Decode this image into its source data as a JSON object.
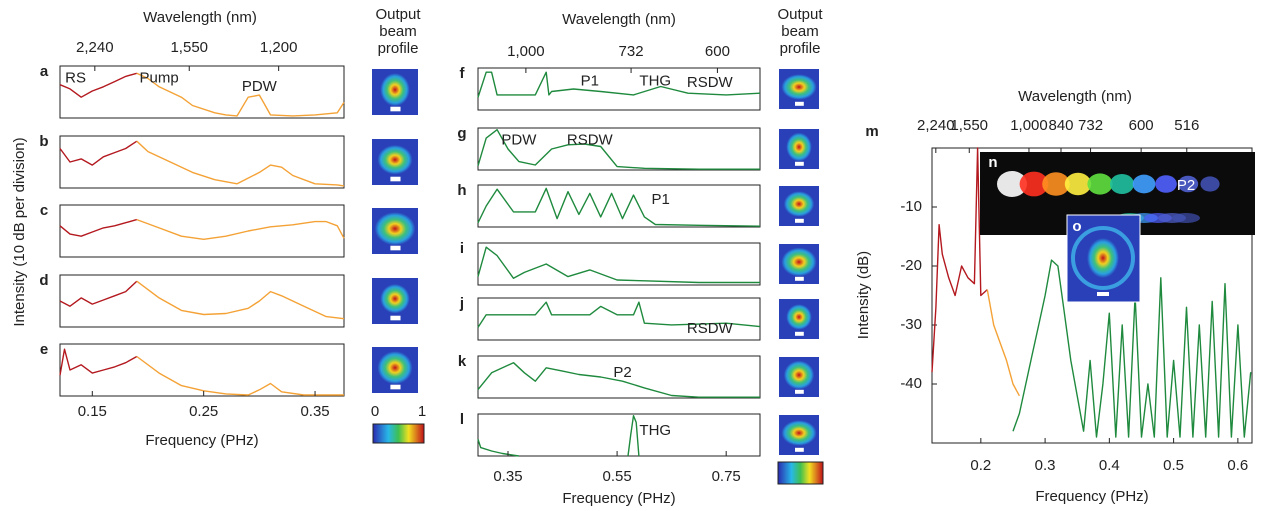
{
  "chart_data": [
    {
      "type": "line",
      "xlabel": "Frequency (PHz)",
      "ylabel": "Intensity (10 dB per division)",
      "xlim": [
        0.121,
        0.376
      ],
      "xticks": [
        0.15,
        0.25,
        0.35
      ],
      "ylim": [
        0,
        5
      ],
      "x2label": "Wavelength (nm)",
      "x2scale": "reciprocal",
      "x2lim": [
        2680,
        1030
      ],
      "x2ticks": [
        {
          "value": 2240,
          "label": "2,240"
        },
        {
          "value": 1550,
          "label": "1,550"
        },
        {
          "value": 1200,
          "label": "1,200"
        }
      ],
      "profile_title": "Output beam profile",
      "colorbar_ticks": [
        0,
        1
      ],
      "panels": [
        {
          "label": "a",
          "series": [
            {
              "color": "#b3191f",
              "x": [
                0.121,
                0.13,
                0.14,
                0.15,
                0.16,
                0.17,
                0.18,
                0.19
              ],
              "values": [
                3.2,
                2.8,
                2.0,
                2.6,
                3.0,
                3.5,
                4.0,
                4.3
              ]
            },
            {
              "color": "#f4a236",
              "x": [
                0.19,
                0.2,
                0.21,
                0.22,
                0.23,
                0.24,
                0.26,
                0.27,
                0.28,
                0.29,
                0.3,
                0.31,
                0.33,
                0.35,
                0.37,
                0.376
              ],
              "values": [
                4.3,
                3.8,
                3.0,
                2.5,
                2.0,
                1.2,
                0.5,
                0.3,
                0.2,
                2.0,
                2.2,
                0.3,
                0.2,
                0.3,
                0.5,
                1.5
              ]
            }
          ],
          "annotations": [
            {
              "text": "RS",
              "x": 0.135,
              "y": 3.8
            },
            {
              "text": "Pump",
              "x": 0.21,
              "y": 3.8
            },
            {
              "text": "PDW",
              "x": 0.3,
              "y": 3.0
            }
          ]
        },
        {
          "label": "b",
          "series": [
            {
              "color": "#b3191f",
              "x": [
                0.121,
                0.13,
                0.14,
                0.15,
                0.16,
                0.17,
                0.18,
                0.19
              ],
              "values": [
                3.8,
                2.5,
                2.8,
                2.2,
                3.0,
                3.4,
                3.8,
                4.5
              ]
            },
            {
              "color": "#f4a236",
              "x": [
                0.19,
                0.2,
                0.22,
                0.24,
                0.26,
                0.28,
                0.3,
                0.31,
                0.32,
                0.33,
                0.35,
                0.37,
                0.376
              ],
              "values": [
                4.5,
                3.5,
                2.5,
                1.5,
                0.8,
                0.4,
                1.5,
                2.2,
                2.0,
                1.2,
                0.4,
                0.3,
                0.2
              ]
            }
          ],
          "annotations": []
        },
        {
          "label": "c",
          "series": [
            {
              "color": "#b3191f",
              "x": [
                0.121,
                0.13,
                0.14,
                0.15,
                0.16,
                0.17,
                0.18,
                0.19
              ],
              "values": [
                3.0,
                2.2,
                2.0,
                2.4,
                2.8,
                3.0,
                3.3,
                3.6
              ]
            },
            {
              "color": "#f4a236",
              "x": [
                0.19,
                0.21,
                0.23,
                0.25,
                0.27,
                0.29,
                0.31,
                0.33,
                0.35,
                0.36,
                0.37,
                0.376
              ],
              "values": [
                3.6,
                2.8,
                2.0,
                1.7,
                2.0,
                2.5,
                2.9,
                3.1,
                3.4,
                3.4,
                3.0,
                1.8
              ]
            }
          ],
          "annotations": []
        },
        {
          "label": "d",
          "series": [
            {
              "color": "#b3191f",
              "x": [
                0.121,
                0.13,
                0.14,
                0.15,
                0.16,
                0.17,
                0.18,
                0.19
              ],
              "values": [
                2.5,
                2.0,
                2.8,
                2.2,
                2.6,
                3.0,
                3.4,
                4.4
              ]
            },
            {
              "color": "#f4a236",
              "x": [
                0.19,
                0.21,
                0.23,
                0.25,
                0.27,
                0.29,
                0.3,
                0.31,
                0.32,
                0.34,
                0.36,
                0.376
              ],
              "values": [
                4.4,
                2.8,
                1.6,
                1.2,
                1.3,
                1.8,
                2.5,
                3.4,
                3.0,
                2.0,
                1.0,
                0.8
              ]
            }
          ],
          "annotations": []
        },
        {
          "label": "e",
          "series": [
            {
              "color": "#b3191f",
              "x": [
                0.121,
                0.125,
                0.13,
                0.14,
                0.15,
                0.16,
                0.17,
                0.18,
                0.19
              ],
              "values": [
                2.0,
                4.5,
                2.5,
                3.0,
                2.2,
                2.5,
                2.8,
                3.2,
                3.8
              ]
            },
            {
              "color": "#f4a236",
              "x": [
                0.19,
                0.21,
                0.23,
                0.25,
                0.27,
                0.29,
                0.3,
                0.31,
                0.32,
                0.34,
                0.376
              ],
              "values": [
                3.8,
                2.2,
                1.0,
                0.5,
                0.2,
                0.1,
                0.6,
                1.2,
                0.4,
                0.1,
                0.1
              ]
            }
          ],
          "annotations": []
        }
      ]
    },
    {
      "type": "line",
      "xlabel": "Frequency (PHz)",
      "xlim": [
        0.295,
        0.812
      ],
      "xticks": [
        0.35,
        0.55,
        0.75
      ],
      "ylim": [
        0,
        5
      ],
      "x2label": "Wavelength (nm)",
      "x2scale": "reciprocal",
      "x2lim": [
        1200,
        551
      ],
      "x2ticks": [
        {
          "value": 1000,
          "label": "1,000"
        },
        732,
        600
      ],
      "profile_title": "Output beam profile",
      "panels": [
        {
          "label": "f",
          "series": [
            {
              "color": "#1f8a3e",
              "x": [
                0.295,
                0.31,
                0.32,
                0.33,
                0.36,
                0.4,
                0.42,
                0.425,
                0.43,
                0.47,
                0.52,
                0.58,
                0.63,
                0.68,
                0.75,
                0.812
              ],
              "values": [
                1.5,
                4.5,
                4.5,
                1.8,
                1.8,
                1.8,
                4.5,
                1.8,
                2.2,
                2.5,
                2.2,
                1.8,
                2.8,
                2.0,
                1.8,
                2.0
              ]
            }
          ],
          "annotations": [
            {
              "text": "P1",
              "x": 0.5,
              "y": 3.4
            },
            {
              "text": "THG",
              "x": 0.62,
              "y": 3.4
            },
            {
              "text": "RSDW",
              "x": 0.72,
              "y": 3.2
            }
          ]
        },
        {
          "label": "g",
          "series": [
            {
              "color": "#1f8a3e",
              "x": [
                0.295,
                0.31,
                0.33,
                0.35,
                0.37,
                0.4,
                0.43,
                0.46,
                0.49,
                0.52,
                0.55,
                0.6,
                0.7,
                0.812
              ],
              "values": [
                0.5,
                3.8,
                4.8,
                2.5,
                1.0,
                0.6,
                2.5,
                3.0,
                3.1,
                2.8,
                0.4,
                0.2,
                0.1,
                0.1
              ]
            }
          ],
          "annotations": [
            {
              "text": "PDW",
              "x": 0.37,
              "y": 3.5
            },
            {
              "text": "RSDW",
              "x": 0.5,
              "y": 3.5
            }
          ]
        },
        {
          "label": "h",
          "series": [
            {
              "color": "#1f8a3e",
              "x": [
                0.295,
                0.31,
                0.33,
                0.36,
                0.4,
                0.42,
                0.44,
                0.46,
                0.48,
                0.5,
                0.52,
                0.54,
                0.56,
                0.58,
                0.6,
                0.62,
                0.7,
                0.812
              ],
              "values": [
                0.5,
                2.5,
                4.5,
                1.8,
                1.8,
                4.6,
                1.0,
                4.2,
                1.5,
                4.0,
                1.2,
                4.0,
                1.0,
                3.8,
                1.2,
                0.3,
                0.2,
                0.1
              ]
            }
          ],
          "annotations": [
            {
              "text": "P1",
              "x": 0.63,
              "y": 3.2
            }
          ]
        },
        {
          "label": "i",
          "series": [
            {
              "color": "#1f8a3e",
              "x": [
                0.295,
                0.31,
                0.33,
                0.36,
                0.38,
                0.42,
                0.46,
                0.5,
                0.55,
                0.6,
                0.7,
                0.812
              ],
              "values": [
                1.0,
                4.5,
                3.5,
                0.8,
                1.5,
                2.5,
                1.0,
                1.8,
                0.6,
                0.5,
                0.3,
                0.3
              ]
            }
          ],
          "annotations": []
        },
        {
          "label": "j",
          "series": [
            {
              "color": "#1f8a3e",
              "x": [
                0.295,
                0.31,
                0.4,
                0.42,
                0.43,
                0.5,
                0.52,
                0.55,
                0.58,
                0.59,
                0.6,
                0.65,
                0.75,
                0.812
              ],
              "values": [
                1.5,
                3.0,
                3.0,
                4.5,
                3.0,
                3.0,
                4.0,
                3.0,
                3.0,
                4.5,
                2.0,
                1.8,
                2.0,
                1.6
              ]
            }
          ],
          "annotations": [
            {
              "text": "RSDW",
              "x": 0.72,
              "y": 1.3
            }
          ]
        },
        {
          "label": "k",
          "series": [
            {
              "color": "#1f8a3e",
              "x": [
                0.295,
                0.32,
                0.36,
                0.38,
                0.4,
                0.42,
                0.45,
                0.48,
                0.52,
                0.56,
                0.6,
                0.65,
                0.7,
                0.812
              ],
              "values": [
                1.0,
                3.0,
                4.2,
                3.0,
                2.0,
                3.6,
                3.2,
                2.8,
                2.5,
                2.0,
                1.2,
                0.3,
                0.1,
                0.1
              ]
            }
          ],
          "annotations": [
            {
              "text": "P2",
              "x": 0.56,
              "y": 3.0
            }
          ]
        },
        {
          "label": "l",
          "series": [
            {
              "color": "#1f8a3e",
              "x": [
                0.295,
                0.3,
                0.32,
                0.34,
                0.36,
                0.37
              ],
              "values": [
                2.0,
                1.0,
                0.6,
                0.3,
                0.1,
                0
              ]
            },
            {
              "color": "#1f8a3e",
              "x": [
                0.57,
                0.575,
                0.58,
                0.585,
                0.59
              ],
              "values": [
                0,
                2.5,
                4.8,
                4.0,
                0
              ]
            }
          ],
          "annotations": [
            {
              "text": "THG",
              "x": 0.62,
              "y": 3.0
            }
          ]
        }
      ]
    },
    {
      "type": "line",
      "label": "m",
      "xlabel": "Frequency (PHz)",
      "ylabel": "Intensity (dB)",
      "xlim": [
        0.124,
        0.622
      ],
      "xticks": [
        0.2,
        0.3,
        0.4,
        0.5,
        0.6
      ],
      "ylim": [
        -50,
        0
      ],
      "yticks": [
        -10,
        -20,
        -30,
        -40
      ],
      "x2label": "Wavelength (nm)",
      "x2scale": "reciprocal",
      "x2lim": [
        2360,
        430
      ],
      "x2ticks": [
        {
          "value": 2240,
          "label": "2,240"
        },
        {
          "value": 1550,
          "label": "1,550"
        },
        {
          "value": 1000,
          "label": "1,000"
        },
        840,
        732,
        600,
        516
      ],
      "series": [
        {
          "color": "#b3191f",
          "x": [
            0.124,
            0.13,
            0.135,
            0.14,
            0.15,
            0.16,
            0.17,
            0.18,
            0.19,
            0.195,
            0.2,
            0.21
          ],
          "values": [
            -38,
            -27,
            -13,
            -18,
            -22,
            -25,
            -20,
            -22,
            -23,
            0,
            -25,
            -24
          ]
        },
        {
          "color": "#f4a236",
          "x": [
            0.21,
            0.22,
            0.23,
            0.24,
            0.25,
            0.26
          ],
          "values": [
            -24,
            -30,
            -33,
            -36,
            -40,
            -42
          ]
        },
        {
          "color": "#1f8a3e",
          "x": [
            0.25,
            0.26,
            0.27,
            0.28,
            0.29,
            0.3,
            0.31,
            0.32,
            0.33,
            0.34,
            0.35,
            0.36,
            0.37,
            0.38,
            0.39,
            0.4,
            0.41,
            0.42,
            0.43,
            0.44,
            0.45,
            0.46,
            0.47,
            0.48,
            0.49,
            0.5,
            0.51,
            0.52,
            0.53,
            0.54,
            0.55,
            0.56,
            0.57,
            0.58,
            0.59,
            0.6,
            0.61,
            0.62
          ],
          "values": [
            -48,
            -45,
            -40,
            -35,
            -30,
            -25,
            -19,
            -20,
            -28,
            -36,
            -42,
            -48,
            -36,
            -49,
            -40,
            -28,
            -49,
            -30,
            -49,
            -25,
            -49,
            -40,
            -49,
            -22,
            -49,
            -36,
            -49,
            -27,
            -49,
            -30,
            -49,
            -26,
            -49,
            -23,
            -49,
            -30,
            -49,
            -38
          ]
        }
      ],
      "insets": [
        {
          "label": "n",
          "annotation": "P2"
        },
        {
          "label": "o"
        }
      ]
    }
  ]
}
